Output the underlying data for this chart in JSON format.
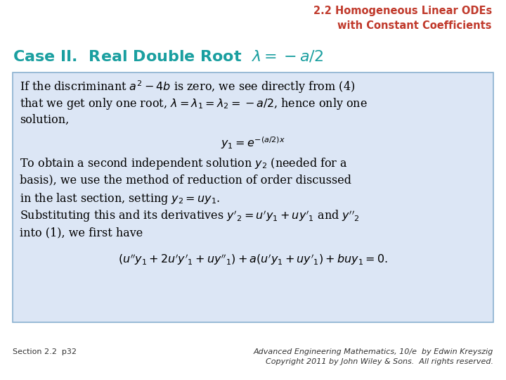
{
  "bg_color": "#ffffff",
  "title_text": "2.2 Homogeneous Linear ODEs\nwith Constant Coefficients",
  "title_color": "#c0392b",
  "title_fontsize": 10.5,
  "case_heading_color": "#1a9fa0",
  "case_heading_fontsize": 16,
  "box_bg_color": "#dce6f5",
  "box_edge_color": "#8ab0d0",
  "footer_left": "Section 2.2  p32",
  "footer_right": "Advanced Engineering Mathematics, 10/e  by Edwin Kreyszig\nCopyright 2011 by John Wiley & Sons.  All rights reserved.",
  "footer_fontsize": 8,
  "footer_color": "#333333",
  "body_fontsize": 11.5,
  "body_color": "#000000"
}
